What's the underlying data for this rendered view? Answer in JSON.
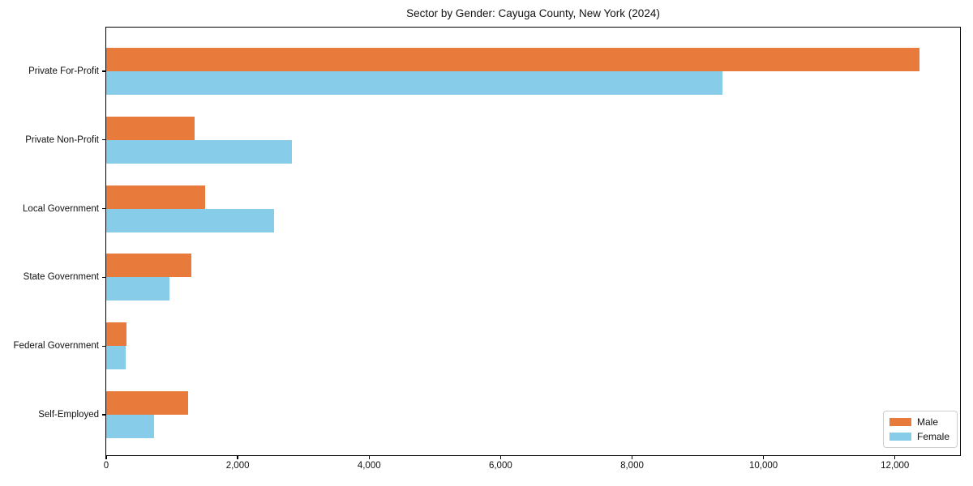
{
  "chart_data": {
    "type": "bar",
    "orientation": "horizontal",
    "title": "Sector by Gender: Cayuga County, New York (2024)",
    "categories": [
      "Private For-Profit",
      "Private Non-Profit",
      "Local Government",
      "State Government",
      "Federal Government",
      "Self-Employed"
    ],
    "series": [
      {
        "name": "Male",
        "color": "#e87b3c",
        "values": [
          12370,
          1350,
          1510,
          1290,
          310,
          1240
        ]
      },
      {
        "name": "Female",
        "color": "#87cde9",
        "values": [
          9380,
          2830,
          2550,
          960,
          295,
          730
        ]
      }
    ],
    "xlabel": "",
    "ylabel": "",
    "xlim": [
      0,
      12990
    ],
    "x_ticks": [
      0,
      2000,
      4000,
      6000,
      8000,
      10000,
      12000
    ],
    "x_tick_labels": [
      "0",
      "2,000",
      "4,000",
      "6,000",
      "8,000",
      "10,000",
      "12,000"
    ],
    "legend_position": "lower right",
    "grid": false,
    "axis_color": "#000000",
    "background_color": "#ffffff"
  }
}
